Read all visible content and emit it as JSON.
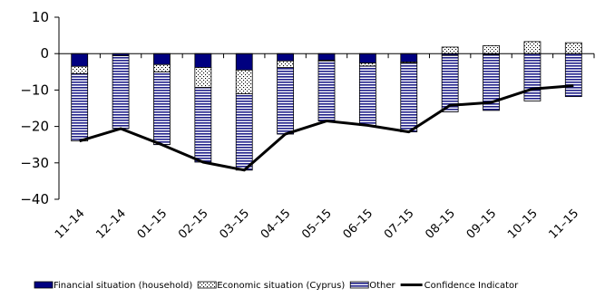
{
  "chart_data": {
    "type": "bar",
    "stacked": true,
    "title": "",
    "xlabel": "",
    "ylabel": "",
    "ylim": [
      -40,
      10
    ],
    "yticks": [
      10,
      0,
      -10,
      -20,
      -30,
      -40
    ],
    "categories": [
      "11-14",
      "12-14",
      "01-15",
      "02-15",
      "03-15",
      "04-15",
      "05-15",
      "06-15",
      "07-15",
      "08-15",
      "09-15",
      "10-15",
      "11-15"
    ],
    "series": [
      {
        "name": "Financial situation (household)",
        "kind": "bar",
        "color": "#000080",
        "pattern": "solid",
        "values": [
          -3.5,
          -0.6,
          -3.0,
          -3.8,
          -4.5,
          -2.0,
          -1.8,
          -2.6,
          -2.3,
          -0.5,
          -0.3,
          0.0,
          0.0
        ]
      },
      {
        "name": "Economic situation (Cyprus)",
        "kind": "bar",
        "color": "#ffffff",
        "pattern": "dots",
        "values": [
          -2.0,
          0.0,
          -2.0,
          -5.5,
          -6.5,
          -1.8,
          -0.2,
          -0.8,
          -0.3,
          1.8,
          2.2,
          3.3,
          3.0
        ]
      },
      {
        "name": "Other",
        "kind": "bar",
        "color": "#8080c0",
        "pattern": "horizontal-lines",
        "values": [
          -18.5,
          -20.0,
          -20.0,
          -20.5,
          -21.0,
          -18.3,
          -16.5,
          -16.3,
          -18.9,
          -15.5,
          -15.3,
          -13.0,
          -11.8
        ]
      },
      {
        "name": "Confidence Indicator",
        "kind": "line",
        "color": "#000000",
        "values": [
          -24.0,
          -20.6,
          -25.0,
          -29.8,
          -32.0,
          -22.1,
          -18.5,
          -19.7,
          -21.5,
          -14.2,
          -13.4,
          -9.7,
          -8.8
        ]
      }
    ],
    "legend_position": "bottom",
    "grid": false
  }
}
